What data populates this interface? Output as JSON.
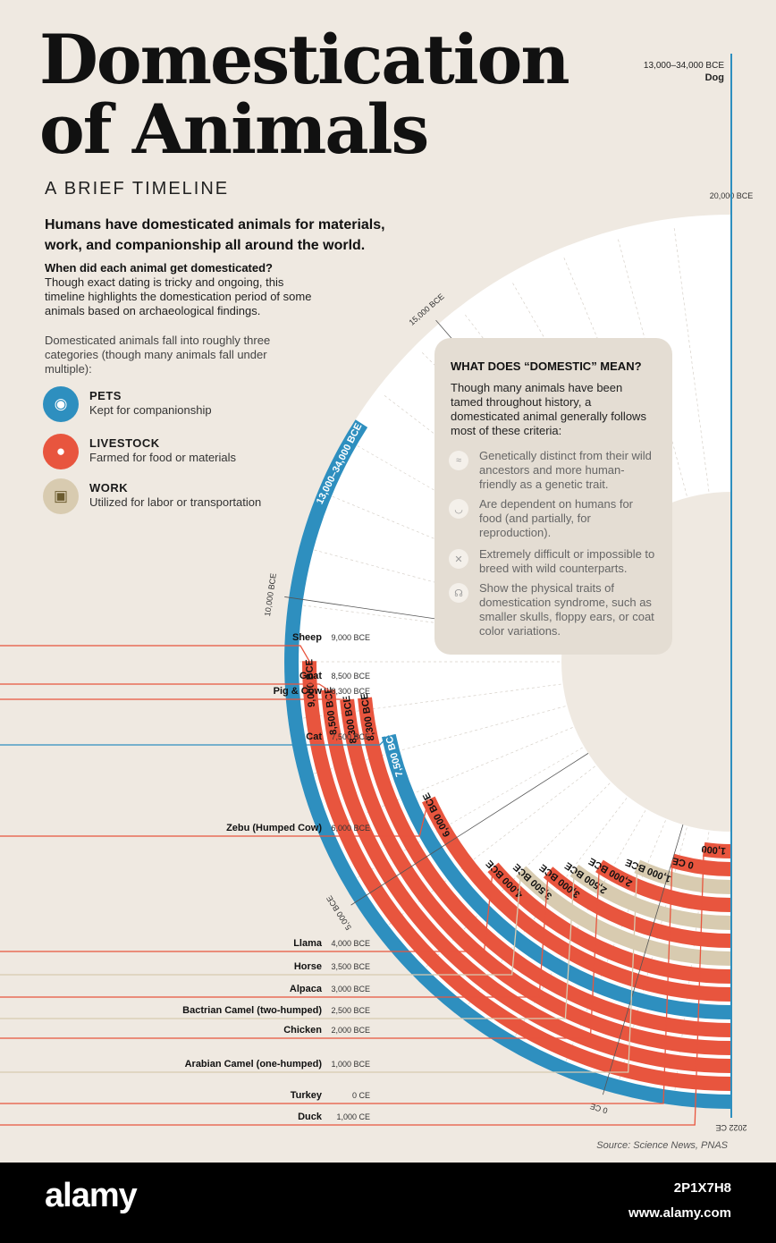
{
  "header": {
    "title_line1": "Domestication",
    "title_line2": "of Animals",
    "subtitle": "A BRIEF TIMELINE"
  },
  "intro": {
    "headline": "Humans have domesticated animals for materials, work, and companionship all around the world.",
    "question": "When did each animal get domesticated?",
    "answer": "Though exact dating is tricky and ongoing, this timeline highlights the domestication period of some animals based on archaeological findings.",
    "categories_intro": "Domesticated animals fall into roughly three categories (though many animals fall under multiple):"
  },
  "categories": [
    {
      "name": "PETS",
      "desc": "Kept for companionship",
      "color": "#2e8fbf",
      "icon": "collar-icon"
    },
    {
      "name": "LIVESTOCK",
      "desc": "Farmed for food or materials",
      "color": "#e8553e",
      "icon": "meat-icon"
    },
    {
      "name": "WORK",
      "desc": "Utilized for labor or transportation",
      "color": "#d8cbb0",
      "icon": "tractor-icon"
    }
  ],
  "info": {
    "title": "WHAT DOES “DOMESTIC” MEAN?",
    "text": "Though many animals have been tamed throughout history, a domesticated animal generally follows most of these criteria:",
    "criteria": [
      {
        "text": "Genetically distinct from their wild ancestors and more human-friendly as a genetic trait.",
        "icon": "dna-icon"
      },
      {
        "text": "Are dependent on humans for food (and partially, for reproduction).",
        "icon": "food-bowl-icon"
      },
      {
        "text": "Extremely difficult or impossible to breed with wild counterparts.",
        "icon": "cross-icon"
      },
      {
        "text": "Show the physical traits of domestication syndrome, such as smaller skulls, floppy ears, or coat color variations.",
        "icon": "ear-icon"
      }
    ]
  },
  "chart_data": {
    "type": "radial-timeline",
    "axis_ticks": [
      "20,000 BCE",
      "15,000 BCE",
      "10,000 BCE",
      "5,000 BCE",
      "0 CE",
      "2022 CE"
    ],
    "top_label_range": "13,000–34,000 BCE",
    "series": [
      {
        "animal": "Dog",
        "date": "13,000–34,000 BCE",
        "band_label": "13,000–34,000 BCE",
        "year": -13000,
        "category": "pet"
      },
      {
        "animal": "Sheep",
        "date": "9,000 BCE",
        "band_label": "9,000 BCE",
        "year": -9000,
        "category": "livestock"
      },
      {
        "animal": "Goat",
        "date": "8,500 BCE",
        "band_label": "8,500 BCE",
        "year": -8500,
        "category": "livestock"
      },
      {
        "animal": "Pig & Cow",
        "date": "8,300 BCE",
        "band_label": "8,300 BCE",
        "year": -8300,
        "category": "livestock"
      },
      {
        "animal": "",
        "date": "",
        "band_label": "8,300 BCE",
        "year": -8300,
        "category": "livestock"
      },
      {
        "animal": "Cat",
        "date": "7,500 BCE",
        "band_label": "7,500 BCE",
        "year": -7500,
        "category": "pet"
      },
      {
        "animal": "Zebu (Humped Cow)",
        "date": "6,000 BCE",
        "band_label": "6,000 BCE",
        "year": -6000,
        "category": "livestock"
      },
      {
        "animal": "Llama",
        "date": "4,000 BCE",
        "band_label": "4,000 BCE",
        "year": -4000,
        "category": "livestock"
      },
      {
        "animal": "Horse",
        "date": "3,500 BCE",
        "band_label": "3,500 BCE",
        "year": -3500,
        "category": "work"
      },
      {
        "animal": "Alpaca",
        "date": "3,000 BCE",
        "band_label": "3,000 BCE",
        "year": -3000,
        "category": "livestock"
      },
      {
        "animal": "Bactrian Camel (two-humped)",
        "date": "2,500 BCE",
        "band_label": "2,500 BCE",
        "year": -2500,
        "category": "work"
      },
      {
        "animal": "Chicken",
        "date": "2,000 BCE",
        "band_label": "2,000 BCE",
        "year": -2000,
        "category": "livestock"
      },
      {
        "animal": "Arabian Camel (one-humped)",
        "date": "1,000 BCE",
        "band_label": "1,000 BCE",
        "year": -1000,
        "category": "work"
      },
      {
        "animal": "Turkey",
        "date": "0 CE",
        "band_label": "0 CE",
        "year": 0,
        "category": "livestock"
      },
      {
        "animal": "Duck",
        "date": "1,000 CE",
        "band_label": "1,000",
        "year": 1000,
        "category": "livestock"
      }
    ]
  },
  "source": "Source: Science News, PNAS",
  "footer": {
    "brand": "alamy",
    "image_id": "2P1X7H8",
    "site": "www.alamy.com"
  }
}
